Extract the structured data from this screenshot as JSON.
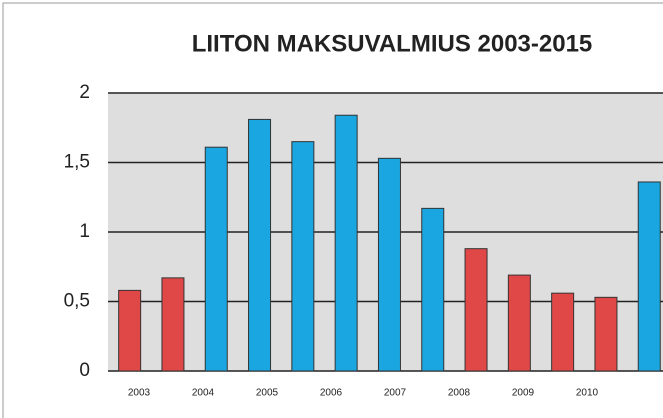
{
  "chart_data": {
    "type": "bar",
    "title": "LIITON MAKSUVALMIUS 2003-2015",
    "categories": [
      "2003",
      "2004",
      "2005",
      "2006",
      "2007",
      "2008",
      "2009",
      "2010",
      null,
      null,
      null,
      null,
      null
    ],
    "values": [
      0.58,
      0.67,
      1.61,
      1.81,
      1.65,
      1.84,
      1.53,
      1.17,
      0.88,
      0.69,
      0.56,
      0.53,
      1.36
    ],
    "colors": [
      "#e04848",
      "#e04848",
      "#1aa6e0",
      "#1aa6e0",
      "#1aa6e0",
      "#1aa6e0",
      "#1aa6e0",
      "#1aa6e0",
      "#e04848",
      "#e04848",
      "#e04848",
      "#e04848",
      "#1aa6e0"
    ],
    "ylim": [
      0,
      2
    ],
    "yticks": [
      0,
      {
        "value": 0.5,
        "label": "0,5"
      },
      1,
      {
        "value": 1.5,
        "label": "1,5"
      },
      2
    ],
    "grid": true
  }
}
